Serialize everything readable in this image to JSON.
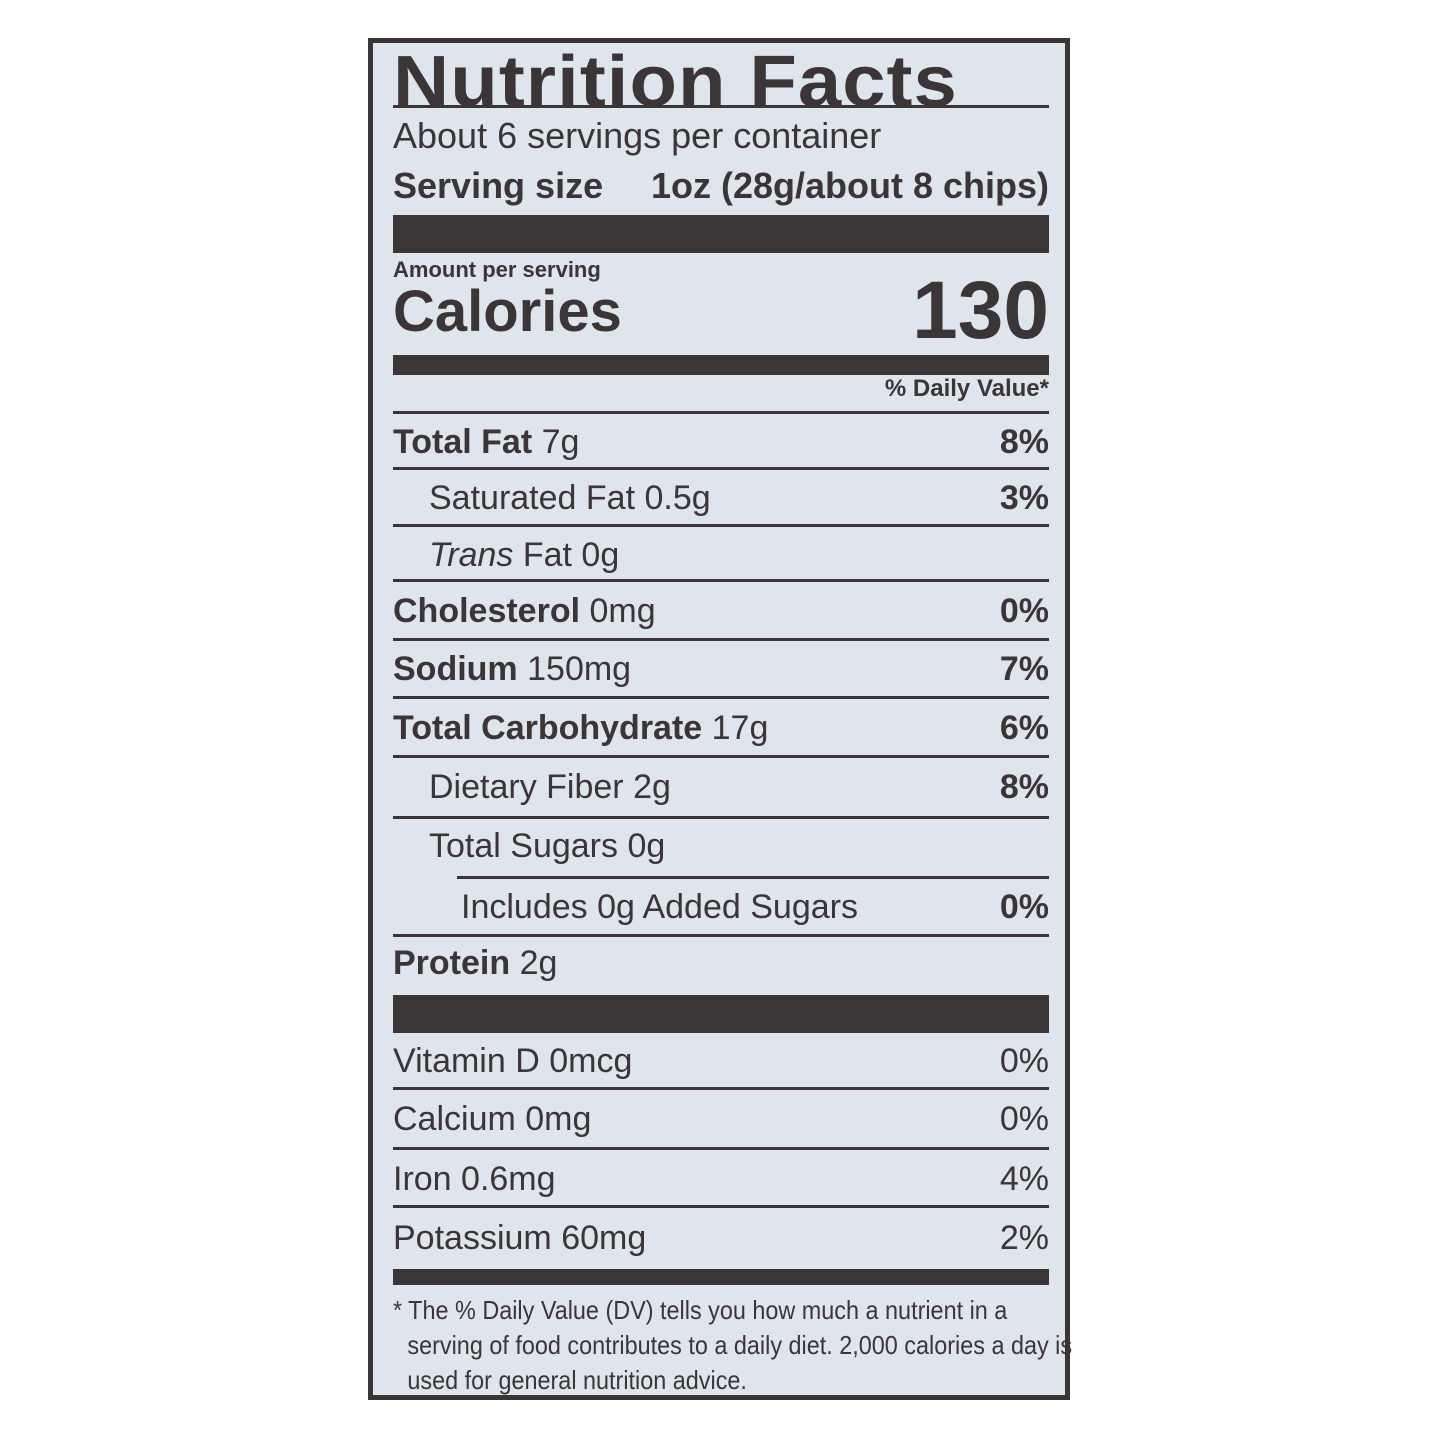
{
  "title": "Nutrition Facts",
  "servings_per_container": "About 6 servings per container",
  "serving_size_label": "Serving size",
  "serving_size_value": "1oz (28g/about 8 chips)",
  "amount_per_serving": "Amount per serving",
  "calories_label": "Calories",
  "calories_value": "130",
  "daily_value_header": "% Daily Value*",
  "nutrients": [
    {
      "name": "Total Fat",
      "amount": "7g",
      "dv": "8%"
    },
    {
      "name": "Saturated Fat",
      "amount": "0.5g",
      "dv": "3%"
    },
    {
      "name": "Trans",
      "suffix": "Fat",
      "amount": "0g",
      "dv": ""
    },
    {
      "name": "Cholesterol",
      "amount": "0mg",
      "dv": "0%"
    },
    {
      "name": "Sodium",
      "amount": "150mg",
      "dv": "7%"
    },
    {
      "name": "Total Carbohydrate",
      "amount": "17g",
      "dv": "6%"
    },
    {
      "name": "Dietary Fiber",
      "amount": "2g",
      "dv": "8%"
    },
    {
      "name": "Total Sugars",
      "amount": "0g",
      "dv": ""
    },
    {
      "name": "Includes 0g Added Sugars",
      "amount": "",
      "dv": "0%"
    },
    {
      "name": "Protein",
      "amount": "2g",
      "dv": ""
    }
  ],
  "vitamins": [
    {
      "name": "Vitamin D",
      "amount": "0mcg",
      "dv": "0%"
    },
    {
      "name": "Calcium",
      "amount": "0mg",
      "dv": "0%"
    },
    {
      "name": "Iron",
      "amount": "0.6mg",
      "dv": "4%"
    },
    {
      "name": "Potassium",
      "amount": "60mg",
      "dv": "2%"
    }
  ],
  "footnote": "* The % Daily Value (DV) tells you how much a nutrient in a serving of food contributes to a daily diet. 2,000 calories a day is used for general nutrition advice.",
  "colors": {
    "ink": "#3b3537",
    "background": "#dfe5ec"
  }
}
